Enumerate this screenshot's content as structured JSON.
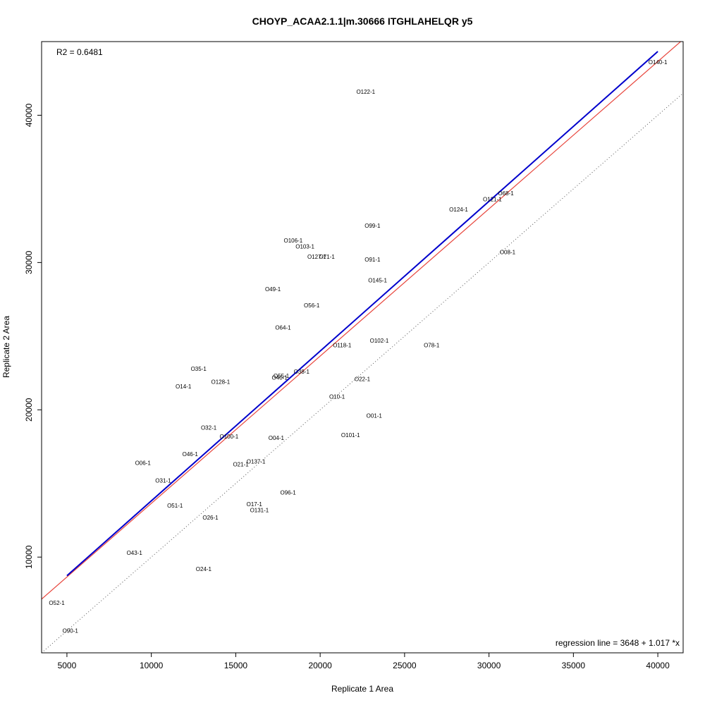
{
  "chart_data": {
    "type": "scatter",
    "title": "CHOYP_ACAA2.1.1|m.30666 ITGHLAHELQR y5",
    "xlabel": "Replicate 1 Area",
    "ylabel": "Replicate 2 Area",
    "xlim": [
      3500,
      41500
    ],
    "ylim": [
      3500,
      45000
    ],
    "x_ticks": [
      5000,
      10000,
      15000,
      20000,
      25000,
      30000,
      35000,
      40000
    ],
    "x_tick_labels": [
      "5000",
      "10000",
      "15000",
      "20000",
      "25000",
      "30000",
      "35000",
      "40000"
    ],
    "y_ticks": [
      10000,
      20000,
      30000,
      40000
    ],
    "y_tick_labels": [
      "10000",
      "20000",
      "30000",
      "40000"
    ],
    "grid": false,
    "r2_label": "R2 = 0.6481",
    "regression_label": "regression line = 3648 + 1.017 *x",
    "regression": {
      "intercept": 3648,
      "slope": 1.017,
      "color": "#0000cc",
      "x_range": [
        5000,
        40000
      ]
    },
    "red_line": {
      "intercept": 3648,
      "slope": 1.0,
      "color": "#e8453c"
    },
    "identity_line": {
      "intercept": 0,
      "slope": 1,
      "color": "#555555",
      "style": "dotted"
    },
    "points": [
      {
        "label": "O140-1",
        "x": 40000,
        "y": 43600
      },
      {
        "label": "O122-1",
        "x": 22700,
        "y": 41600
      },
      {
        "label": "O68-1",
        "x": 31000,
        "y": 34700
      },
      {
        "label": "O121-1",
        "x": 30200,
        "y": 34300
      },
      {
        "label": "O124-1",
        "x": 28200,
        "y": 33600
      },
      {
        "label": "O99-1",
        "x": 23100,
        "y": 32500
      },
      {
        "label": "O106-1",
        "x": 18400,
        "y": 31500
      },
      {
        "label": "O103-1",
        "x": 19100,
        "y": 31100
      },
      {
        "label": "O127-1",
        "x": 19800,
        "y": 30400
      },
      {
        "label": "O71-1",
        "x": 20400,
        "y": 30400
      },
      {
        "label": "O08-1",
        "x": 31100,
        "y": 30700
      },
      {
        "label": "O91-1",
        "x": 23100,
        "y": 30200
      },
      {
        "label": "O145-1",
        "x": 23400,
        "y": 28800
      },
      {
        "label": "O49-1",
        "x": 17200,
        "y": 28200
      },
      {
        "label": "O56-1",
        "x": 19500,
        "y": 27100
      },
      {
        "label": "O64-1",
        "x": 17800,
        "y": 25600
      },
      {
        "label": "O102-1",
        "x": 23500,
        "y": 24700
      },
      {
        "label": "O118-1",
        "x": 21300,
        "y": 24400
      },
      {
        "label": "O78-1",
        "x": 26600,
        "y": 24400
      },
      {
        "label": "O35-1",
        "x": 12800,
        "y": 22800
      },
      {
        "label": "O38-1",
        "x": 18900,
        "y": 22600
      },
      {
        "label": "O55-1",
        "x": 17700,
        "y": 22300
      },
      {
        "label": "O40-1",
        "x": 17600,
        "y": 22200
      },
      {
        "label": "O22-1",
        "x": 22500,
        "y": 22100
      },
      {
        "label": "O128-1",
        "x": 14100,
        "y": 21900
      },
      {
        "label": "O14-1",
        "x": 11900,
        "y": 21600
      },
      {
        "label": "O10-1",
        "x": 21000,
        "y": 20900
      },
      {
        "label": "O01-1",
        "x": 23200,
        "y": 19600
      },
      {
        "label": "O32-1",
        "x": 13400,
        "y": 18800
      },
      {
        "label": "O100-1",
        "x": 14600,
        "y": 18200
      },
      {
        "label": "O04-1",
        "x": 17400,
        "y": 18100
      },
      {
        "label": "O101-1",
        "x": 21800,
        "y": 18300
      },
      {
        "label": "O46-1",
        "x": 12300,
        "y": 17000
      },
      {
        "label": "O06-1",
        "x": 9500,
        "y": 16400
      },
      {
        "label": "O137-1",
        "x": 16200,
        "y": 16500
      },
      {
        "label": "O21-1",
        "x": 15300,
        "y": 16300
      },
      {
        "label": "O31-1",
        "x": 10700,
        "y": 15200
      },
      {
        "label": "O96-1",
        "x": 18100,
        "y": 14400
      },
      {
        "label": "O51-1",
        "x": 11400,
        "y": 13500
      },
      {
        "label": "O17-1",
        "x": 16100,
        "y": 13600
      },
      {
        "label": "O131-1",
        "x": 16400,
        "y": 13200
      },
      {
        "label": "O26-1",
        "x": 13500,
        "y": 12700
      },
      {
        "label": "O43-1",
        "x": 9000,
        "y": 10300
      },
      {
        "label": "O24-1",
        "x": 13100,
        "y": 9200
      },
      {
        "label": "O52-1",
        "x": 4400,
        "y": 6900
      },
      {
        "label": "O90-1",
        "x": 5200,
        "y": 5000
      }
    ]
  }
}
